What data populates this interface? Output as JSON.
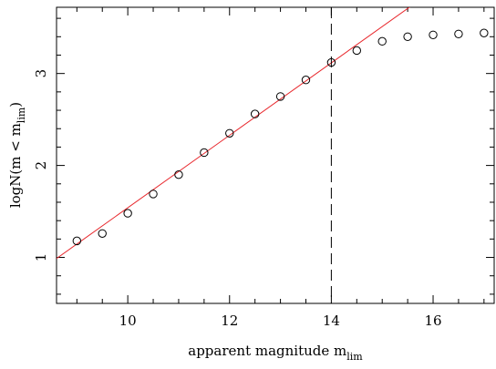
{
  "chart_data": {
    "type": "scatter",
    "title": "",
    "xlabel": {
      "main": "apparent magnitude m",
      "sub": "lim"
    },
    "ylabel": {
      "main": "logN(m < m",
      "sub": "lim",
      "close": ")"
    },
    "xlim": [
      8.6,
      17.2
    ],
    "ylim": [
      0.5,
      3.72
    ],
    "x_ticks": [
      10,
      12,
      14,
      16
    ],
    "y_ticks": [
      1,
      2,
      3
    ],
    "x_minor_step": 0.5,
    "y_minor_step": 0.2,
    "points": {
      "x": [
        9.0,
        9.5,
        10.0,
        10.5,
        11.0,
        11.5,
        12.0,
        12.5,
        13.0,
        13.5,
        14.0,
        14.5,
        15.0,
        15.5,
        16.0,
        16.5,
        17.0
      ],
      "y": [
        1.18,
        1.26,
        1.48,
        1.69,
        1.9,
        2.14,
        2.35,
        2.56,
        2.75,
        2.93,
        3.12,
        3.25,
        3.35,
        3.4,
        3.42,
        3.43,
        3.44
      ]
    },
    "fit_line": {
      "slope": 0.394,
      "intercept": -2.4,
      "color": "#e8262b"
    },
    "vline": {
      "x": 14.0,
      "style": "dashed"
    },
    "colors": {
      "points": "#000000",
      "fit": "#e8262b"
    },
    "grid": false,
    "legend": "none"
  }
}
